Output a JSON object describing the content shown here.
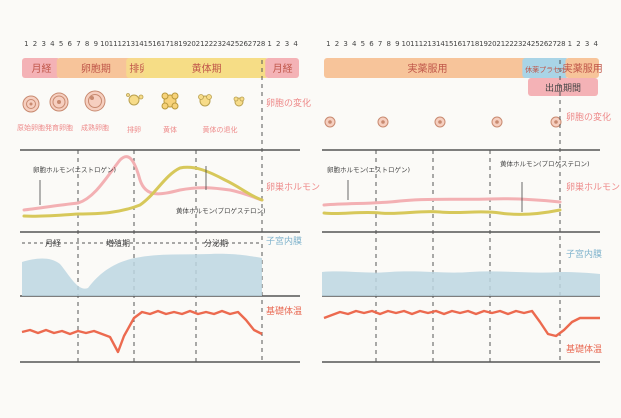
{
  "colors": {
    "pink": "#f2a7a7",
    "orange_band": "#f7c48c",
    "yellow_band": "#f7e08c",
    "blue_band": "#a9d4e6",
    "estrogen_line": "#f3b0b3",
    "progesterone_line": "#d7c85a",
    "uterine_fill": "#bcd6e2",
    "bbt_line": "#ec6a4f",
    "label_pink": "#ee8a8a",
    "label_blue": "#7fb3cc",
    "label_red": "#e96b55",
    "grid": "#555555"
  },
  "left_panel": {
    "day_numbers": [
      "1",
      "2",
      "3",
      "4",
      "5",
      "6",
      "7",
      "8",
      "9",
      "10",
      "11",
      "12",
      "13",
      "14",
      "15",
      "16",
      "17",
      "18",
      "19",
      "20",
      "21",
      "22",
      "23",
      "24",
      "25",
      "26",
      "27",
      "28",
      "1",
      "2",
      "3",
      "4"
    ],
    "phases": [
      {
        "label": "月経",
        "color": "#f4b2b6",
        "start_day": 1,
        "end_day": 4.5
      },
      {
        "label": "卵胞期",
        "color": "#f7c49a",
        "start_day": 5,
        "end_day": 13
      },
      {
        "label": "排卵",
        "color": "#f7d98c",
        "start_day": 13,
        "end_day": 15
      },
      {
        "label": "黄体期",
        "color": "#f6dd86",
        "start_day": 15,
        "end_day": 28.5
      },
      {
        "label": "月経",
        "color": "#f4b2b6",
        "start_day": 29,
        "end_day": 32
      }
    ],
    "follicle_labels": [
      "原始卵胞",
      "発育卵胞",
      "成熟卵胞",
      "排卵",
      "黄体",
      "黄体の退化"
    ],
    "ovary_change_label": "卵胞の変化",
    "hormone_label": "卵巣ホルモン",
    "estrogen_label": "卵胞ホルモン(エストロゲン)",
    "progesterone_label": "黄体ホルモン(プロゲステロン)",
    "period_labels": [
      "月経",
      "増殖期",
      "分泌期"
    ],
    "uterine_label": "子宮内膜",
    "bbt_label": "基礎体温"
  },
  "right_panel": {
    "day_numbers": [
      "1",
      "2",
      "3",
      "4",
      "5",
      "6",
      "7",
      "8",
      "9",
      "10",
      "11",
      "12",
      "13",
      "14",
      "15",
      "16",
      "17",
      "18",
      "19",
      "20",
      "21",
      "22",
      "23",
      "24",
      "25",
      "26",
      "27",
      "28",
      "1",
      "2",
      "3",
      "4"
    ],
    "phases": [
      {
        "label": "実薬服用",
        "color": "#f7c49a",
        "start_day": 1,
        "end_day": 24
      },
      {
        "label": "休薬プラセボ",
        "color": "#a9d4e6",
        "start_day": 24,
        "end_day": 28.5
      },
      {
        "label": "実薬服用",
        "color": "#f7c49a",
        "start_day": 29,
        "end_day": 32
      }
    ],
    "bleeding_label": "出血期間",
    "ovary_change_label": "卵胞の変化",
    "hormone_label": "卵巣ホルモン",
    "estrogen_label": "卵胞ホルモン(エストロゲン)",
    "progesterone_label": "黄体ホルモン(プロゲステロン)",
    "uterine_label": "子宮内膜",
    "bbt_label": "基礎体温"
  }
}
